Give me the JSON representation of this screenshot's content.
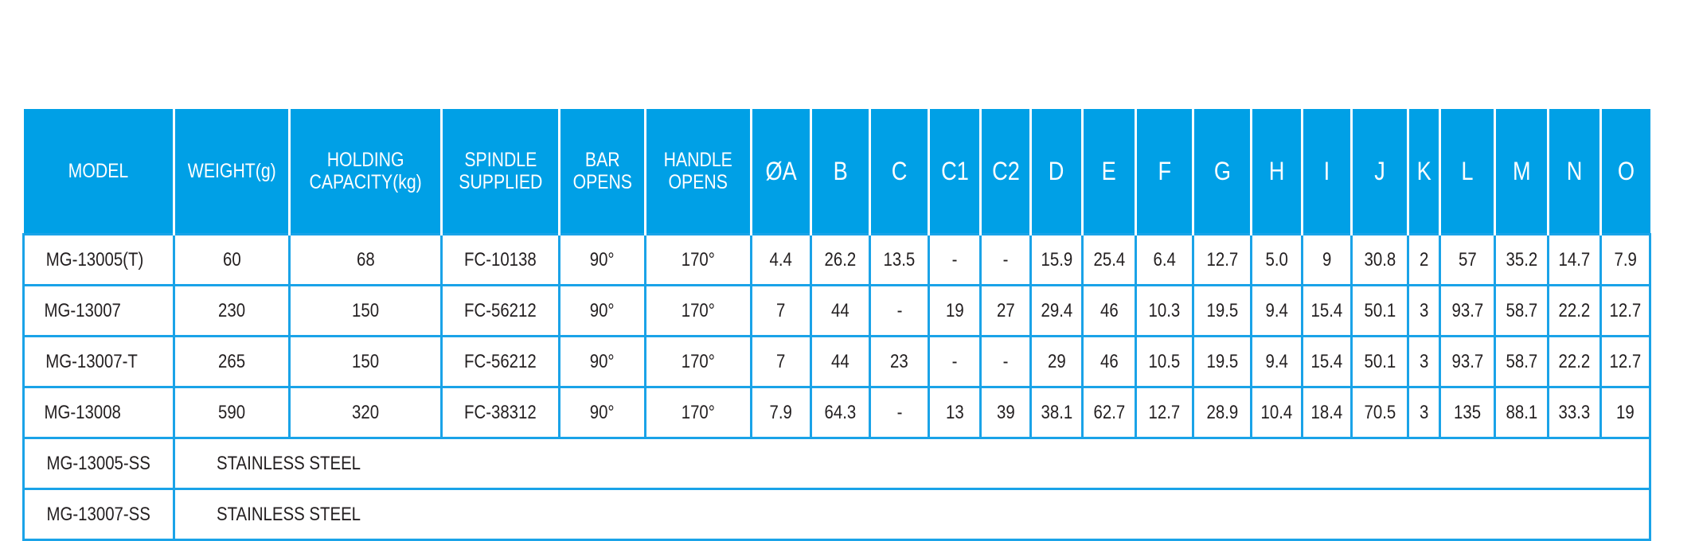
{
  "headers": [
    "MODEL",
    "WEIGHT(g)",
    "HOLDING CAPACITY(kg)",
    "SPINDLE SUPPLIED",
    "BAR OPENS",
    "HANDLE OPENS",
    "ØA",
    "B",
    "C",
    "C1",
    "C2",
    "D",
    "E",
    "F",
    "G",
    "H",
    "I",
    "J",
    "K",
    "L",
    "M",
    "N",
    "O"
  ],
  "rows": [
    [
      "MG-13005(T)",
      "60",
      "68",
      "FC-10138",
      "90°",
      "170°",
      "4.4",
      "26.2",
      "13.5",
      "-",
      "-",
      "15.9",
      "25.4",
      "6.4",
      "12.7",
      "5.0",
      "9",
      "30.8",
      "2",
      "57",
      "35.2",
      "14.7",
      "7.9"
    ],
    [
      "MG-13007",
      "230",
      "150",
      "FC-56212",
      "90°",
      "170°",
      "7",
      "44",
      "-",
      "19",
      "27",
      "29.4",
      "46",
      "10.3",
      "19.5",
      "9.4",
      "15.4",
      "50.1",
      "3",
      "93.7",
      "58.7",
      "22.2",
      "12.7"
    ],
    [
      "MG-13007-T",
      "265",
      "150",
      "FC-56212",
      "90°",
      "170°",
      "7",
      "44",
      "23",
      "-",
      "-",
      "29",
      "46",
      "10.5",
      "19.5",
      "9.4",
      "15.4",
      "50.1",
      "3",
      "93.7",
      "58.7",
      "22.2",
      "12.7"
    ],
    [
      "MG-13008",
      "590",
      "320",
      "FC-38312",
      "90°",
      "170°",
      "7.9",
      "64.3",
      "-",
      "13",
      "39",
      "38.1",
      "62.7",
      "12.7",
      "28.9",
      "10.4",
      "18.4",
      "70.5",
      "3",
      "135",
      "88.1",
      "33.3",
      "19"
    ]
  ],
  "material_rows": [
    {
      "model": "MG-13005-SS",
      "material": "STAINLESS STEEL"
    },
    {
      "model": "MG-13007-SS",
      "material": "STAINLESS STEEL"
    }
  ],
  "colors": {
    "header_bg": "#00a0e6",
    "border": "#1aa3e8"
  }
}
